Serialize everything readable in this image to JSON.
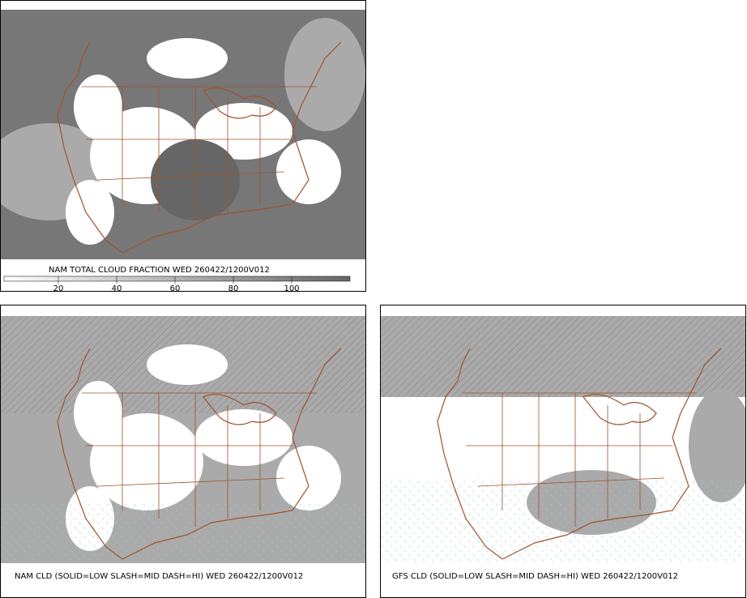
{
  "panels": [
    {
      "caption": "NAM TOTAL CLOUD FRACTION WED 260422/1200V012",
      "colorbar_ticks": [
        20,
        40,
        60,
        80,
        100
      ]
    },
    {
      "caption": "NAM CLD (SOLID=LOW SLASH=MID DASH=HI) WED 260422/1200V012"
    },
    {
      "caption": "GFS CLD (SOLID=LOW SLASH=MID DASH=HI) WED 260422/1200V012"
    }
  ]
}
